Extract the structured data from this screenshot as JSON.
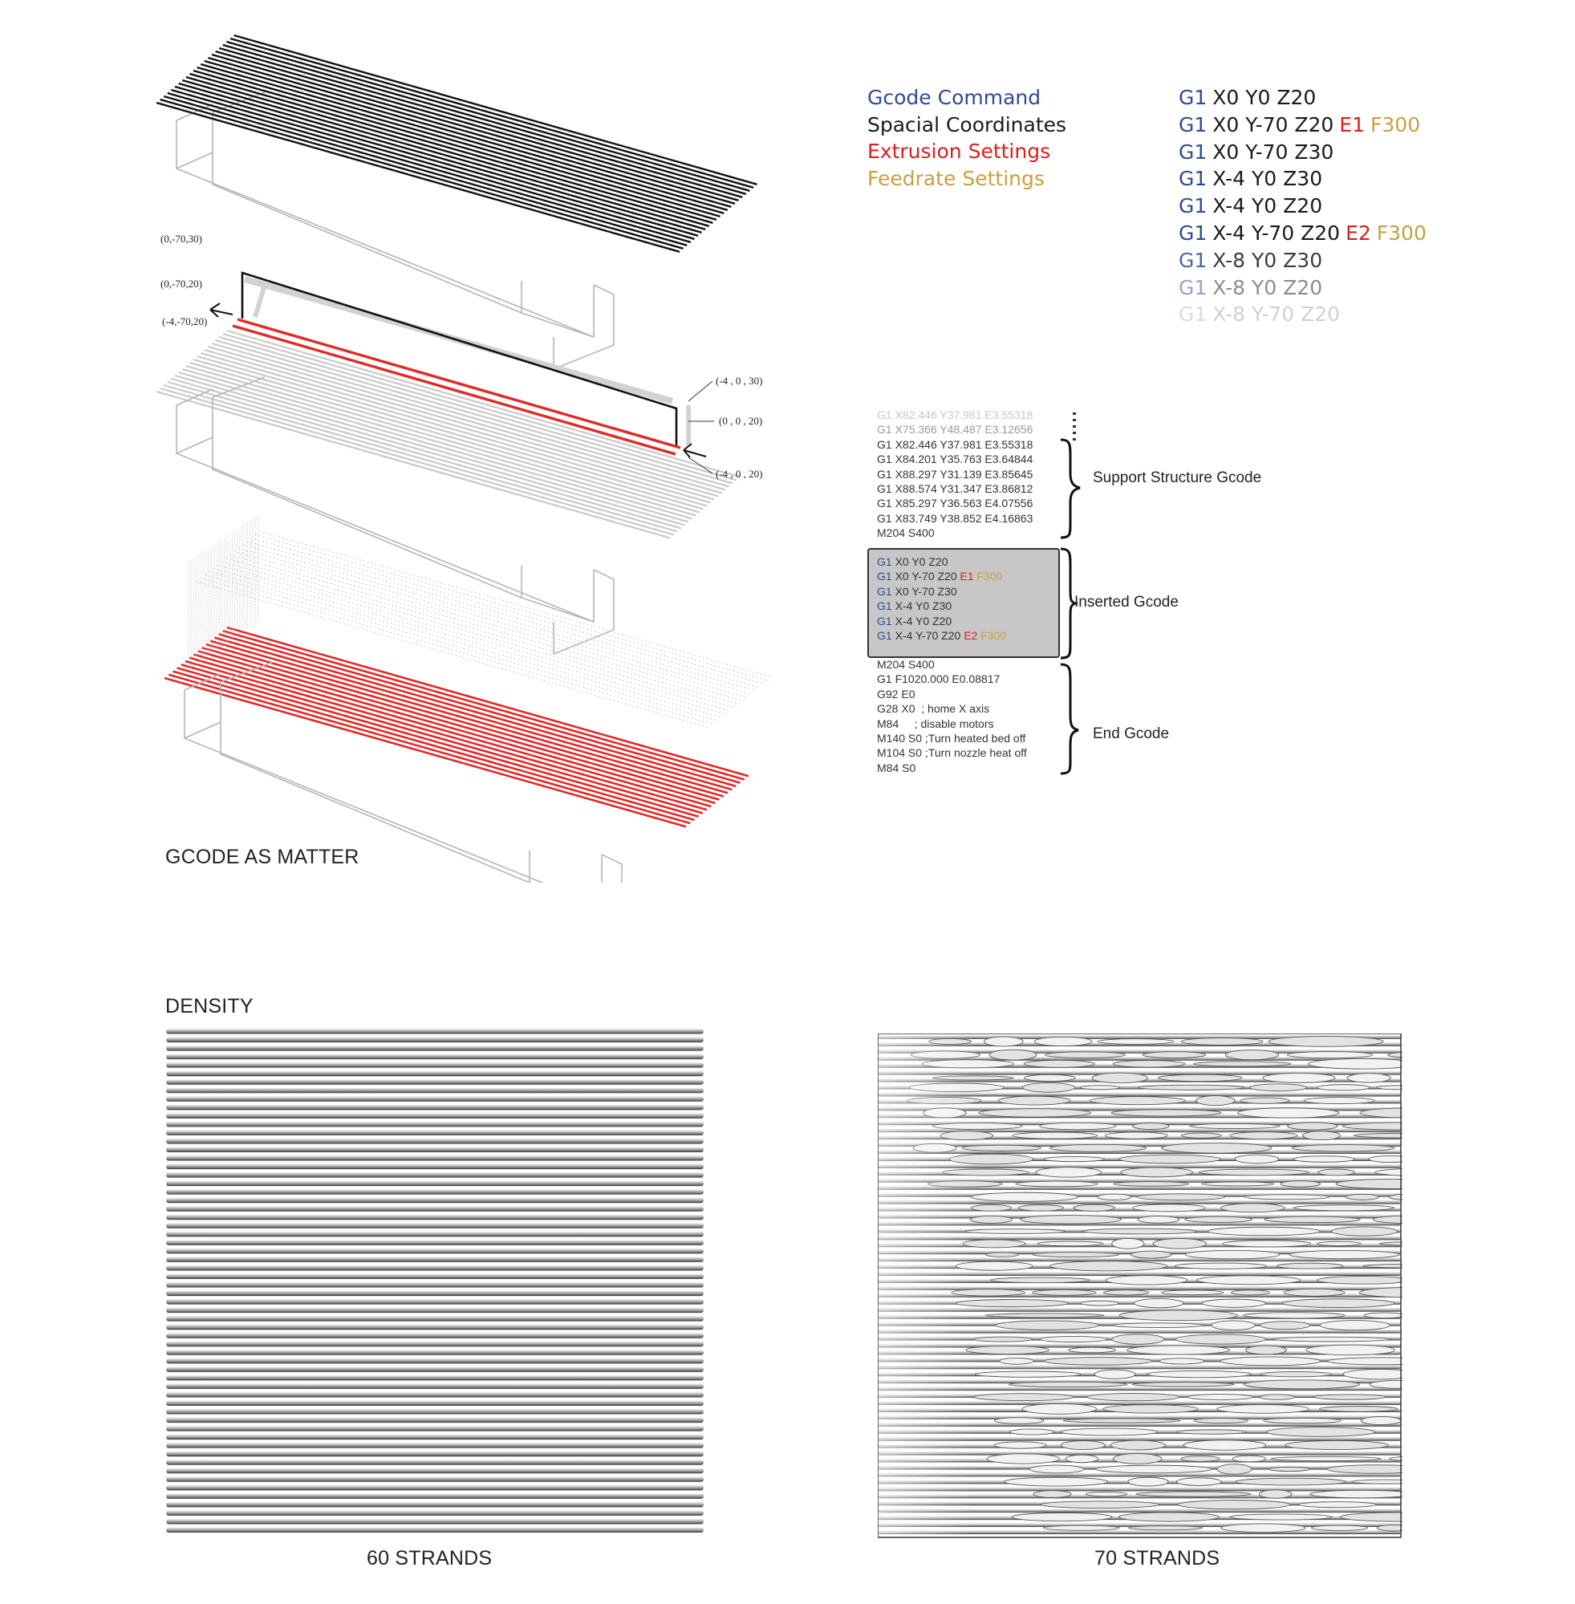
{
  "legend": {
    "command": {
      "label": "Gcode Command",
      "color": "#2e4a9a"
    },
    "spatial": {
      "label": "Spacial Coordinates",
      "color": "#1a1a1a"
    },
    "extrusion": {
      "label": "Extrusion Settings",
      "color": "#d92020"
    },
    "feedrate": {
      "label": "Feedrate Settings",
      "color": "#c8a040"
    }
  },
  "gcode_lines": [
    {
      "cmd": "G1",
      "coords": "X0 Y0 Z20",
      "ext": "",
      "feed": "",
      "opacity": 1
    },
    {
      "cmd": "G1",
      "coords": "X0 Y-70 Z20",
      "ext": "E1",
      "feed": "F300",
      "opacity": 1
    },
    {
      "cmd": "G1",
      "coords": "X0 Y-70 Z30",
      "ext": "",
      "feed": "",
      "opacity": 1
    },
    {
      "cmd": "G1",
      "coords": "X-4 Y0 Z30",
      "ext": "",
      "feed": "",
      "opacity": 1
    },
    {
      "cmd": "G1",
      "coords": "X-4 Y0 Z20",
      "ext": "",
      "feed": "",
      "opacity": 1
    },
    {
      "cmd": "G1",
      "coords": "X-4 Y-70 Z20",
      "ext": "E2",
      "feed": "F300",
      "opacity": 1
    },
    {
      "cmd": "G1",
      "coords": "X-8 Y0 Z30",
      "ext": "",
      "feed": "",
      "opacity": 0.85
    },
    {
      "cmd": "G1",
      "coords": "X-8 Y0 Z20",
      "ext": "",
      "feed": "",
      "opacity": 0.5
    },
    {
      "cmd": "G1",
      "coords": "X-8 Y-70 Z20",
      "ext": "",
      "feed": "",
      "opacity": 0.2
    }
  ],
  "support_code": [
    "G1 X82.446 Y37.981 E3.55318",
    "G1 X75.366 Y48.487 E3.12656",
    "G1 X82.446 Y37.981 E3.55318",
    "G1 X84.201 Y35.763 E3.64844",
    "G1 X88.297 Y31.139 E3.85645",
    "G1 X88.574 Y31.347 E3.86812",
    "G1 X85.297 Y36.563 E4.07556",
    "G1 X83.749 Y38.852 E4.16863",
    "M204 S400"
  ],
  "support_label": "Support Structure Gcode",
  "inserted_code": [
    {
      "cmd": "G1",
      "coords": "X0 Y0 Z20",
      "ext": "",
      "feed": ""
    },
    {
      "cmd": "G1",
      "coords": "X0 Y-70 Z20",
      "ext": "E1",
      "feed": "F300"
    },
    {
      "cmd": "G1",
      "coords": "X0 Y-70 Z30",
      "ext": "",
      "feed": ""
    },
    {
      "cmd": "G1",
      "coords": "X-4 Y0 Z30",
      "ext": "",
      "feed": ""
    },
    {
      "cmd": "G1",
      "coords": "X-4 Y0 Z20",
      "ext": "",
      "feed": ""
    },
    {
      "cmd": "G1",
      "coords": "X-4 Y-70 Z20",
      "ext": "E2",
      "feed": "F300"
    }
  ],
  "inserted_label": "Inserted Gcode",
  "end_code": [
    "M204 S400",
    "G1 F1020.000 E0.08817",
    "G92 E0",
    "G28 X0  ; home X axis",
    "M84     ; disable motors",
    "M140 S0 ;Turn heated bed off",
    "M104 S0 ;Turn nozzle heat off",
    "M84 S0"
  ],
  "end_label": "End Gcode",
  "coords": {
    "c1": "(0,-70,30)",
    "c2": "(0,-70,20)",
    "c3": "(-4,-70,20)",
    "c4": "(-4 , 0 , 30)",
    "c5": "(0 , 0 , 20)",
    "c6": "(-4 , 0 , 20)"
  },
  "captions": {
    "gcode_as_matter": "GCODE AS MATTER",
    "density": "DENSITY",
    "left_panel": "60 STRANDS",
    "right_panel": "70 STRANDS"
  },
  "panels": {
    "left_strands": 60,
    "right_strands": 70
  }
}
